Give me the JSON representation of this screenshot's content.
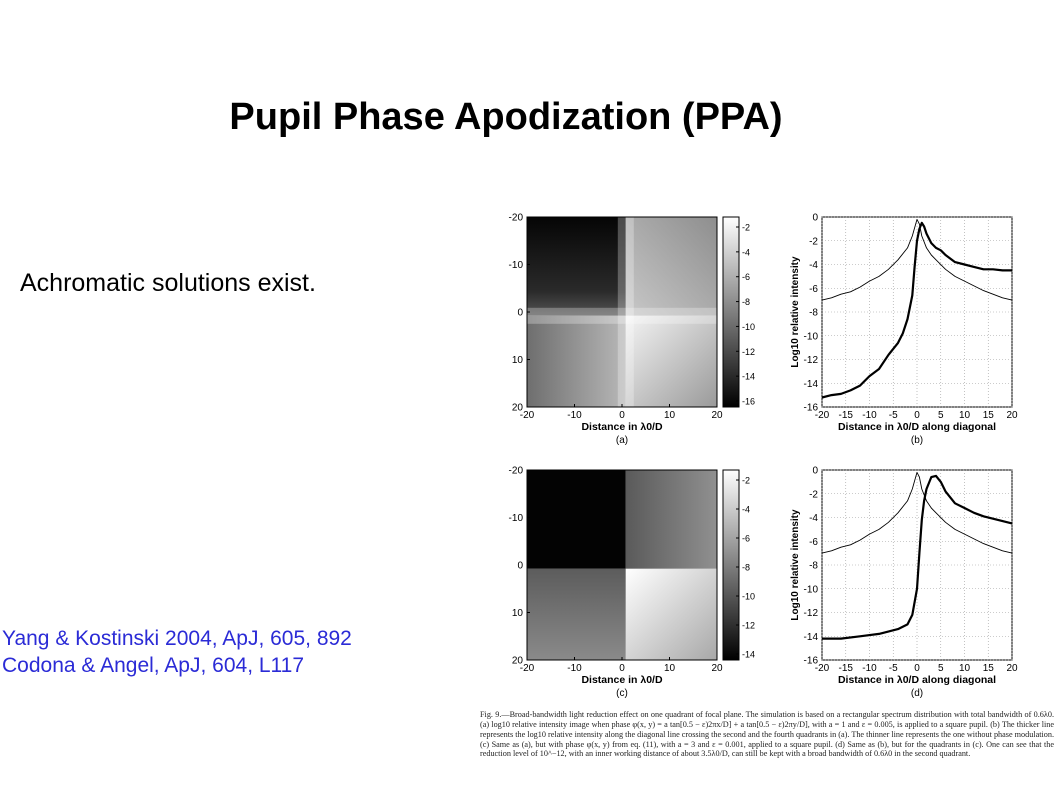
{
  "slide": {
    "title": "Pupil Phase Apodization (PPA)",
    "bullet": "Achromatic solutions exist.",
    "references": [
      "Yang & Kostinski 2004, ApJ, 605, 892",
      "Codona & Angel, ApJ, 604, L117"
    ]
  },
  "figure": {
    "panels": [
      {
        "label": "(a)",
        "type": "image",
        "x_ticks": [
          "-20",
          "-10",
          "0",
          "10",
          "20"
        ],
        "y_ticks": [
          "-20",
          "-10",
          "0",
          "10",
          "20"
        ],
        "xlabel": "Distance in λ0/D",
        "colorbar_ticks": [
          "-2",
          "-4",
          "-6",
          "-8",
          "-10",
          "-12",
          "-14",
          "-16"
        ]
      },
      {
        "label": "(b)",
        "type": "line",
        "x_ticks": [
          "-20",
          "-15",
          "-10",
          "-5",
          "0",
          "5",
          "10",
          "15",
          "20"
        ],
        "y_ticks": [
          "0",
          "-2",
          "-4",
          "-6",
          "-8",
          "-10",
          "-12",
          "-14",
          "-16"
        ],
        "xlabel": "Distance in λ0/D along diagonal",
        "ylabel": "Log10 relative intensity"
      },
      {
        "label": "(c)",
        "type": "image",
        "x_ticks": [
          "-20",
          "-10",
          "0",
          "10",
          "20"
        ],
        "y_ticks": [
          "-20",
          "-10",
          "0",
          "10",
          "20"
        ],
        "xlabel": "Distance in λ0/D",
        "colorbar_ticks": [
          "-2",
          "-4",
          "-6",
          "-8",
          "-10",
          "-12",
          "-14"
        ]
      },
      {
        "label": "(d)",
        "type": "line",
        "x_ticks": [
          "-20",
          "-15",
          "-10",
          "-5",
          "0",
          "5",
          "10",
          "15",
          "20"
        ],
        "y_ticks": [
          "0",
          "-2",
          "-4",
          "-6",
          "-8",
          "-10",
          "-12",
          "-14",
          "-16"
        ],
        "xlabel": "Distance in λ0/D along diagonal",
        "ylabel": "Log10 relative intensity"
      }
    ],
    "caption": "Fig. 9.—Broad-bandwidth light reduction effect on one quadrant of focal plane. The simulation is based on a rectangular spectrum distribution with total bandwidth of 0.6λ0. (a) log10 relative intensity image when phase φ(x, y) = a tan[0.5 − ε)2πx/D] + a tan[0.5 − ε)2πy/D], with a = 1 and ε = 0.005, is applied to a square pupil. (b) The thicker line represents the log10 relative intensity along the diagonal line crossing the second and the fourth quadrants in (a). The thinner line represents the one without phase modulation. (c) Same as (a), but with phase φ(x, y) from eq. (11), with a = 3 and ε = 0.001, applied to a square pupil. (d) Same as (b), but for the quadrants in (c). One can see that the reduction level of 10^−12, with an inner working distance of about 3.5λ0/D, can still be kept with a broad bandwidth of 0.6λ0 in the second quadrant."
  },
  "chart_data": [
    {
      "type": "line",
      "panel": "(b)",
      "xlabel": "Distance in λ0/D along diagonal",
      "ylabel": "Log10 relative intensity",
      "xlim": [
        -20,
        20
      ],
      "ylim": [
        -16,
        0
      ],
      "grid": true,
      "series": [
        {
          "style": "thick",
          "x": [
            -20,
            -18,
            -16,
            -14,
            -12,
            -10,
            -8,
            -6,
            -4,
            -3,
            -2,
            -1,
            -0.5,
            0,
            0.5,
            1,
            1.5,
            2,
            3,
            4,
            5,
            6,
            8,
            10,
            12,
            14,
            16,
            18,
            20
          ],
          "y": [
            -15.2,
            -15.0,
            -14.9,
            -14.6,
            -14.2,
            -13.4,
            -12.8,
            -11.6,
            -10.6,
            -9.8,
            -8.6,
            -6.6,
            -4.2,
            -2.0,
            -1.0,
            -0.5,
            -0.8,
            -1.4,
            -2.2,
            -2.6,
            -2.8,
            -3.2,
            -3.8,
            -4.0,
            -4.2,
            -4.4,
            -4.4,
            -4.5,
            -4.5
          ]
        },
        {
          "style": "thin",
          "x": [
            -20,
            -18,
            -16,
            -14,
            -12,
            -10,
            -8,
            -6,
            -4,
            -2,
            -1,
            0,
            0.5,
            1,
            2,
            3,
            4,
            6,
            8,
            10,
            12,
            14,
            16,
            18,
            20
          ],
          "y": [
            -7.0,
            -6.8,
            -6.5,
            -6.3,
            -5.9,
            -5.4,
            -5.0,
            -4.4,
            -3.6,
            -2.6,
            -1.6,
            -0.2,
            -0.6,
            -1.6,
            -2.6,
            -3.2,
            -3.6,
            -4.4,
            -5.0,
            -5.4,
            -5.8,
            -6.2,
            -6.5,
            -6.8,
            -7.0
          ]
        }
      ]
    },
    {
      "type": "line",
      "panel": "(d)",
      "xlabel": "Distance in λ0/D along diagonal",
      "ylabel": "Log10 relative intensity",
      "xlim": [
        -20,
        20
      ],
      "ylim": [
        -16,
        0
      ],
      "grid": true,
      "series": [
        {
          "style": "thick",
          "x": [
            -20,
            -16,
            -12,
            -8,
            -4,
            -2,
            -1,
            0,
            0.5,
            1,
            1.5,
            2,
            3,
            4,
            5,
            6,
            8,
            10,
            12,
            14,
            16,
            18,
            20
          ],
          "y": [
            -14.2,
            -14.2,
            -14.0,
            -13.8,
            -13.4,
            -13.0,
            -12.2,
            -10.0,
            -7.0,
            -4.2,
            -2.6,
            -1.6,
            -0.6,
            -0.5,
            -1.0,
            -1.8,
            -2.8,
            -3.2,
            -3.6,
            -3.9,
            -4.1,
            -4.3,
            -4.5
          ]
        },
        {
          "style": "thin",
          "x": [
            -20,
            -18,
            -16,
            -14,
            -12,
            -10,
            -8,
            -6,
            -4,
            -2,
            -1,
            0,
            0.5,
            1,
            2,
            3,
            4,
            6,
            8,
            10,
            12,
            14,
            16,
            18,
            20
          ],
          "y": [
            -7.0,
            -6.8,
            -6.5,
            -6.3,
            -5.9,
            -5.4,
            -5.0,
            -4.4,
            -3.6,
            -2.6,
            -1.6,
            -0.2,
            -0.6,
            -1.6,
            -2.6,
            -3.2,
            -3.6,
            -4.4,
            -5.0,
            -5.4,
            -5.8,
            -6.2,
            -6.5,
            -6.8,
            -7.0
          ]
        }
      ]
    }
  ]
}
